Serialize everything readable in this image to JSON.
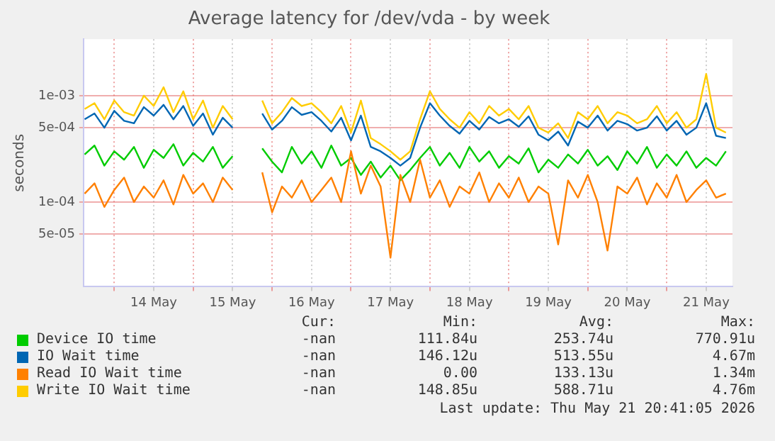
{
  "chart_data": {
    "type": "line",
    "title": "Average latency for /dev/vda - by week",
    "ylabel": "seconds",
    "log": "y",
    "grid": true,
    "legend": "bottom",
    "marker": "none",
    "line_style": "solid",
    "x": [
      "2026-05-13T15:00",
      "2026-05-13T18:00",
      "2026-05-13T21:00",
      "2026-05-14T00:00",
      "2026-05-14T03:00",
      "2026-05-14T06:00",
      "2026-05-14T09:00",
      "2026-05-14T12:00",
      "2026-05-14T15:00",
      "2026-05-14T18:00",
      "2026-05-14T21:00",
      "2026-05-15T00:00",
      "2026-05-15T03:00",
      "2026-05-15T06:00",
      "2026-05-15T09:00",
      "2026-05-15T12:00",
      "2026-05-15T15:00",
      "2026-05-15T18:00",
      "2026-05-15T21:00",
      "2026-05-16T00:00",
      "2026-05-16T03:00",
      "2026-05-16T06:00",
      "2026-05-16T09:00",
      "2026-05-16T12:00",
      "2026-05-16T15:00",
      "2026-05-16T18:00",
      "2026-05-16T21:00",
      "2026-05-17T00:00",
      "2026-05-17T03:00",
      "2026-05-17T06:00",
      "2026-05-17T09:00",
      "2026-05-17T12:00",
      "2026-05-17T15:00",
      "2026-05-17T18:00",
      "2026-05-17T21:00",
      "2026-05-18T00:00",
      "2026-05-18T03:00",
      "2026-05-18T06:00",
      "2026-05-18T09:00",
      "2026-05-18T12:00",
      "2026-05-18T15:00",
      "2026-05-18T18:00",
      "2026-05-18T21:00",
      "2026-05-19T00:00",
      "2026-05-19T03:00",
      "2026-05-19T06:00",
      "2026-05-19T09:00",
      "2026-05-19T12:00",
      "2026-05-19T15:00",
      "2026-05-19T18:00",
      "2026-05-19T21:00",
      "2026-05-20T00:00",
      "2026-05-20T03:00",
      "2026-05-20T06:00",
      "2026-05-20T09:00",
      "2026-05-20T12:00",
      "2026-05-20T15:00",
      "2026-05-20T18:00",
      "2026-05-20T21:00",
      "2026-05-21T00:00",
      "2026-05-21T03:00",
      "2026-05-21T06:00",
      "2026-05-21T09:00",
      "2026-05-21T12:00",
      "2026-05-21T15:00",
      "2026-05-21T18:00"
    ],
    "xlim": [
      "2026-05-13T14:40",
      "2026-05-21T20:00"
    ],
    "xticks": [
      {
        "value": "2026-05-14T00:00",
        "label": null
      },
      {
        "value": "2026-05-14T12:00",
        "label": "14 May"
      },
      {
        "value": "2026-05-15T00:00",
        "label": null
      },
      {
        "value": "2026-05-15T12:00",
        "label": "15 May"
      },
      {
        "value": "2026-05-16T00:00",
        "label": null
      },
      {
        "value": "2026-05-16T12:00",
        "label": "16 May"
      },
      {
        "value": "2026-05-17T00:00",
        "label": null
      },
      {
        "value": "2026-05-17T12:00",
        "label": "17 May"
      },
      {
        "value": "2026-05-18T00:00",
        "label": null
      },
      {
        "value": "2026-05-18T12:00",
        "label": "18 May"
      },
      {
        "value": "2026-05-19T00:00",
        "label": null
      },
      {
        "value": "2026-05-19T12:00",
        "label": "19 May"
      },
      {
        "value": "2026-05-20T00:00",
        "label": null
      },
      {
        "value": "2026-05-20T12:00",
        "label": "20 May"
      },
      {
        "value": "2026-05-21T00:00",
        "label": null
      },
      {
        "value": "2026-05-21T12:00",
        "label": "21 May"
      }
    ],
    "ylim": [
      1.6e-05,
      0.0034
    ],
    "yticks": [
      {
        "value": 5e-05,
        "label": "5e-05"
      },
      {
        "value": 0.0001,
        "label": "1e-04"
      },
      {
        "value": 0.0005,
        "label": "5e-04"
      },
      {
        "value": 0.001,
        "label": "1e-03"
      }
    ],
    "series": [
      {
        "name": "Device IO time",
        "color": "#00cc00",
        "values": [
          0.00028,
          0.00034,
          0.00022,
          0.0003,
          0.00025,
          0.00033,
          0.00021,
          0.00031,
          0.00026,
          0.00035,
          0.00022,
          0.00029,
          0.00024,
          0.00033,
          0.00021,
          0.00027,
          null,
          null,
          0.00032,
          0.00024,
          0.00019,
          0.00033,
          0.00023,
          0.0003,
          0.00021,
          0.00034,
          0.00022,
          0.00026,
          0.00018,
          0.00024,
          0.00017,
          0.00022,
          0.00016,
          0.0002,
          0.00026,
          0.00033,
          0.00022,
          0.00029,
          0.00021,
          0.00033,
          0.00024,
          0.0003,
          0.00021,
          0.00027,
          0.00023,
          0.00032,
          0.00019,
          0.00025,
          0.00021,
          0.00028,
          0.00023,
          0.00031,
          0.00022,
          0.00027,
          0.0002,
          0.0003,
          0.00023,
          0.00033,
          0.00021,
          0.00028,
          0.00022,
          0.0003,
          0.00021,
          0.00026,
          0.00022,
          0.0003
        ]
      },
      {
        "name": "IO Wait time",
        "color": "#0066b3",
        "values": [
          0.0006,
          0.00068,
          0.0005,
          0.00072,
          0.00058,
          0.00055,
          0.00078,
          0.00065,
          0.00082,
          0.0006,
          0.0008,
          0.00052,
          0.00068,
          0.00043,
          0.00062,
          0.0005,
          null,
          null,
          0.00068,
          0.00048,
          0.00058,
          0.00078,
          0.00066,
          0.0007,
          0.00058,
          0.00046,
          0.00062,
          0.00038,
          0.00065,
          0.00033,
          0.0003,
          0.00026,
          0.00022,
          0.00026,
          0.0005,
          0.00085,
          0.00065,
          0.00052,
          0.00044,
          0.00058,
          0.00048,
          0.00063,
          0.00055,
          0.0006,
          0.00051,
          0.00064,
          0.00043,
          0.00038,
          0.00046,
          0.00034,
          0.00057,
          0.0005,
          0.00065,
          0.00047,
          0.00058,
          0.00054,
          0.00047,
          0.0005,
          0.00064,
          0.00047,
          0.00058,
          0.00043,
          0.0005,
          0.00085,
          0.00042,
          0.0004
        ]
      },
      {
        "name": "Read IO Wait time",
        "color": "#ff8000",
        "values": [
          0.00012,
          0.00015,
          9e-05,
          0.00013,
          0.00017,
          0.0001,
          0.00014,
          0.00011,
          0.00016,
          9.5e-05,
          0.00018,
          0.00012,
          0.00015,
          0.0001,
          0.00017,
          0.00013,
          null,
          null,
          0.00019,
          8e-05,
          0.00014,
          0.00011,
          0.00016,
          0.0001,
          0.00013,
          0.00017,
          0.0001,
          0.0003,
          0.00012,
          0.00022,
          0.00014,
          3e-05,
          0.00018,
          0.0001,
          0.00025,
          0.00011,
          0.00016,
          9e-05,
          0.00014,
          0.00012,
          0.00019,
          0.0001,
          0.00015,
          0.00011,
          0.00017,
          0.0001,
          0.00014,
          0.00012,
          4e-05,
          0.00016,
          0.00011,
          0.00018,
          0.0001,
          3.5e-05,
          0.00014,
          0.00012,
          0.00017,
          9.5e-05,
          0.00015,
          0.00011,
          0.00018,
          0.0001,
          0.00013,
          0.00016,
          0.00011,
          0.00012
        ]
      },
      {
        "name": "Write IO Wait time",
        "color": "#ffcc00",
        "values": [
          0.00075,
          0.00085,
          0.0006,
          0.0009,
          0.0007,
          0.00065,
          0.001,
          0.0008,
          0.0012,
          0.0007,
          0.0011,
          0.0006,
          0.0009,
          0.0005,
          0.0008,
          0.0006,
          null,
          null,
          0.0009,
          0.00055,
          0.0007,
          0.00095,
          0.0008,
          0.00085,
          0.0007,
          0.00055,
          0.0008,
          0.00045,
          0.0009,
          0.0004,
          0.00035,
          0.0003,
          0.00025,
          0.0003,
          0.0006,
          0.0011,
          0.00075,
          0.0006,
          0.0005,
          0.0007,
          0.00055,
          0.0008,
          0.00065,
          0.00075,
          0.0006,
          0.0008,
          0.0005,
          0.00045,
          0.00055,
          0.0004,
          0.0007,
          0.0006,
          0.0008,
          0.00055,
          0.0007,
          0.00065,
          0.00055,
          0.0006,
          0.0008,
          0.00055,
          0.0007,
          0.0005,
          0.0006,
          0.0016,
          0.0005,
          0.00045
        ]
      }
    ],
    "annotations": [
      "Cur:",
      "Min:",
      "Avg:",
      "Max:",
      "-nan",
      "111.84u",
      "253.74u",
      "770.91u",
      "-nan",
      "146.12u",
      "513.55u",
      "4.67m",
      "-nan",
      "0.00",
      "133.13u",
      "1.34m",
      "-nan",
      "148.85u",
      "588.71u",
      "4.76m",
      "Last update: Thu May 21 20:41:05 2026"
    ]
  }
}
